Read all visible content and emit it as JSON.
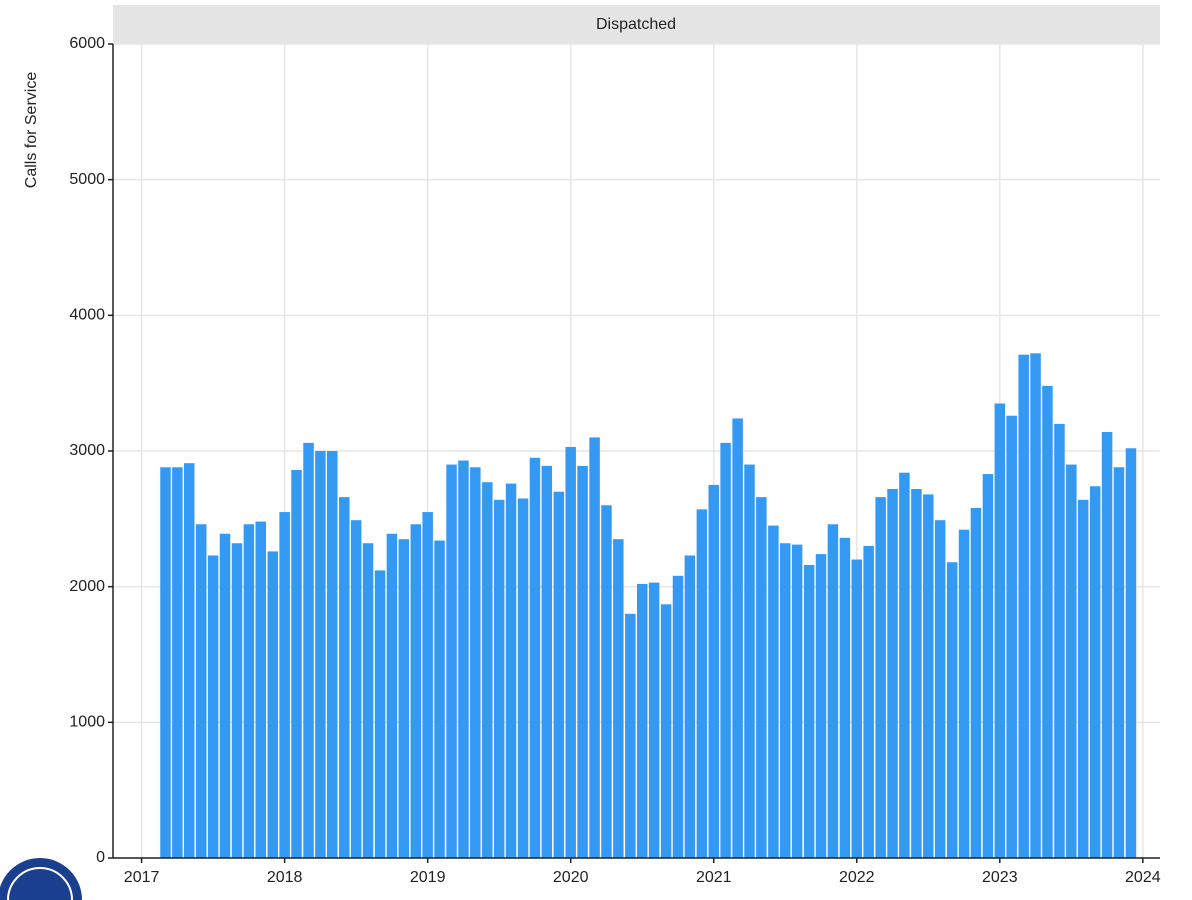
{
  "chart_data": {
    "type": "bar",
    "title": "Dispatched",
    "y_label": "Calls for Service",
    "color": "#3399f3",
    "x": [
      2017.167,
      2017.25,
      2017.333,
      2017.417,
      2017.5,
      2017.583,
      2017.667,
      2017.75,
      2017.833,
      2017.917,
      2018,
      2018.083,
      2018.167,
      2018.25,
      2018.333,
      2018.417,
      2018.5,
      2018.583,
      2018.667,
      2018.75,
      2018.833,
      2018.917,
      2019,
      2019.083,
      2019.167,
      2019.25,
      2019.333,
      2019.417,
      2019.5,
      2019.583,
      2019.667,
      2019.75,
      2019.833,
      2019.917,
      2020,
      2020.083,
      2020.167,
      2020.25,
      2020.333,
      2020.417,
      2020.5,
      2020.583,
      2020.667,
      2020.75,
      2020.833,
      2020.917,
      2021,
      2021.083,
      2021.167,
      2021.25,
      2021.333,
      2021.417,
      2021.5,
      2021.583,
      2021.667,
      2021.75,
      2021.833,
      2021.917,
      2022,
      2022.083,
      2022.167,
      2022.25,
      2022.333,
      2022.417,
      2022.5,
      2022.583,
      2022.667,
      2022.75,
      2022.833,
      2022.917,
      2023,
      2023.083,
      2023.167,
      2023.25,
      2023.333,
      2023.417,
      2023.5,
      2023.583,
      2023.667,
      2023.75,
      2023.833,
      2023.917
    ],
    "values": [
      2880,
      2880,
      2910,
      2460,
      2230,
      2390,
      2320,
      2460,
      2480,
      2260,
      2550,
      2860,
      3060,
      3000,
      3000,
      2660,
      2490,
      2320,
      2120,
      2390,
      2350,
      2460,
      2550,
      2340,
      2900,
      2930,
      2880,
      2770,
      2640,
      2760,
      2650,
      2950,
      2890,
      2700,
      3030,
      2890,
      3100,
      2600,
      2350,
      1800,
      2020,
      2030,
      1870,
      2080,
      2230,
      2570,
      2750,
      3060,
      3240,
      2900,
      2660,
      2450,
      2320,
      2310,
      2160,
      2240,
      2460,
      2360,
      2200,
      2300,
      2660,
      2720,
      2840,
      2720,
      2680,
      2490,
      2180,
      2420,
      2580,
      2830,
      3350,
      3260,
      3710,
      3720,
      3480,
      3200,
      2900,
      2640,
      2740,
      3140,
      2880,
      3020
    ],
    "xlim": [
      2016.8,
      2024.12
    ],
    "xticks": [
      2017,
      2018,
      2019,
      2020,
      2021,
      2022,
      2023,
      2024
    ],
    "ylim": [
      0,
      6000
    ],
    "yticks": [
      0,
      1000,
      2000,
      3000,
      4000,
      5000,
      6000
    ],
    "grid": true
  }
}
